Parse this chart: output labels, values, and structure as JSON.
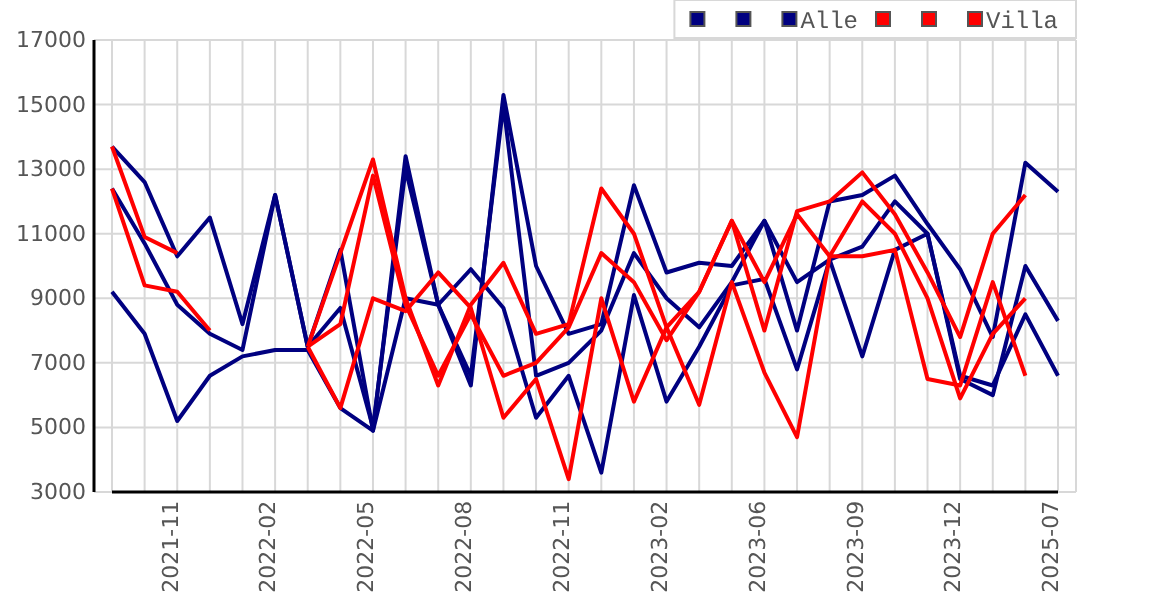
{
  "chart_data": {
    "type": "line",
    "categories": [
      null,
      null,
      "2021-11",
      null,
      null,
      "2022-02",
      null,
      null,
      "2022-05",
      null,
      null,
      "2022-08",
      null,
      null,
      "2022-11",
      null,
      null,
      "2023-02",
      null,
      null,
      "2023-06",
      null,
      null,
      "2023-09",
      null,
      null,
      "2023-12",
      null,
      null,
      "2025-07"
    ],
    "series": [
      {
        "color": "#000080",
        "values": [
          13700,
          12600,
          10300,
          11500,
          8200,
          12200,
          7500,
          10500,
          4900,
          13400,
          8800,
          6300,
          15300,
          10000,
          7900,
          8200,
          12500,
          9800,
          10100,
          10000,
          11400,
          8000,
          12000,
          12200,
          12800,
          11300,
          9900,
          7800,
          13200,
          12300
        ]
      },
      {
        "color": "#000080",
        "values": [
          12400,
          10700,
          8800,
          7900,
          7400,
          12200,
          7500,
          8700,
          5000,
          13000,
          8800,
          6600,
          15000,
          6600,
          7000,
          8000,
          10400,
          9000,
          8100,
          9500,
          11400,
          9500,
          10200,
          10600,
          12000,
          11000,
          6500,
          6000,
          10000,
          8300
        ]
      },
      {
        "name": "Alle",
        "color": "#000080",
        "values": [
          9200,
          7900,
          5200,
          6600,
          7200,
          7400,
          7400,
          5600,
          4900,
          9000,
          8800,
          9900,
          8700,
          5300,
          6600,
          3600,
          9100,
          5800,
          7500,
          9400,
          9600,
          6800,
          10200,
          7200,
          10500,
          11000,
          6600,
          6300,
          8500,
          6600
        ]
      },
      {
        "color": "#ff0000",
        "values": [
          13700,
          10900,
          10400,
          null,
          null,
          null,
          7500,
          10400,
          13300,
          9000,
          6300,
          8800,
          10100,
          7900,
          8200,
          12400,
          11000,
          8100,
          9200,
          11400,
          8000,
          11700,
          12000,
          12900,
          11600,
          9800,
          7800,
          11000,
          12200,
          null
        ]
      },
      {
        "color": "#ff0000",
        "values": [
          12400,
          9400,
          9200,
          8000,
          null,
          null,
          7500,
          8200,
          12800,
          8800,
          6600,
          8500,
          6600,
          7000,
          8100,
          10400,
          9500,
          7700,
          9200,
          11400,
          9500,
          11600,
          10300,
          12000,
          11000,
          9000,
          5900,
          7900,
          9000,
          null
        ]
      },
      {
        "name": "Villa",
        "color": "#ff0000",
        "values": [
          null,
          null,
          null,
          null,
          null,
          null,
          7500,
          5600,
          9000,
          8600,
          9800,
          8700,
          5300,
          6500,
          3400,
          9000,
          5800,
          8100,
          5700,
          9500,
          6700,
          4700,
          10300,
          10300,
          10500,
          6500,
          6300,
          9500,
          6600,
          null
        ]
      }
    ],
    "ylim": [
      3000,
      17000
    ],
    "yticks": [
      3000,
      5000,
      7000,
      9000,
      11000,
      13000,
      15000,
      17000
    ],
    "grid": true,
    "legend": "top right",
    "marker": "none",
    "line_style": "solid"
  }
}
